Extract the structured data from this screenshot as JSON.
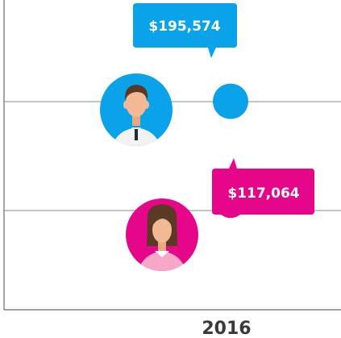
{
  "chart_data": {
    "type": "scatter",
    "categories": [
      "2016"
    ],
    "series": [
      {
        "icon": "man-avatar-icon",
        "values": [
          195574
        ],
        "value_label": "$195,574",
        "color": "#0aa2e8"
      },
      {
        "icon": "woman-avatar-icon",
        "values": [
          117064
        ],
        "value_label": "$117,064",
        "color": "#e6068a"
      }
    ],
    "grid": true
  },
  "colors": {
    "blue": "#0aa2e8",
    "magenta": "#e6068a",
    "axis": "#6b6b6b",
    "text": "#3a3a3a"
  }
}
